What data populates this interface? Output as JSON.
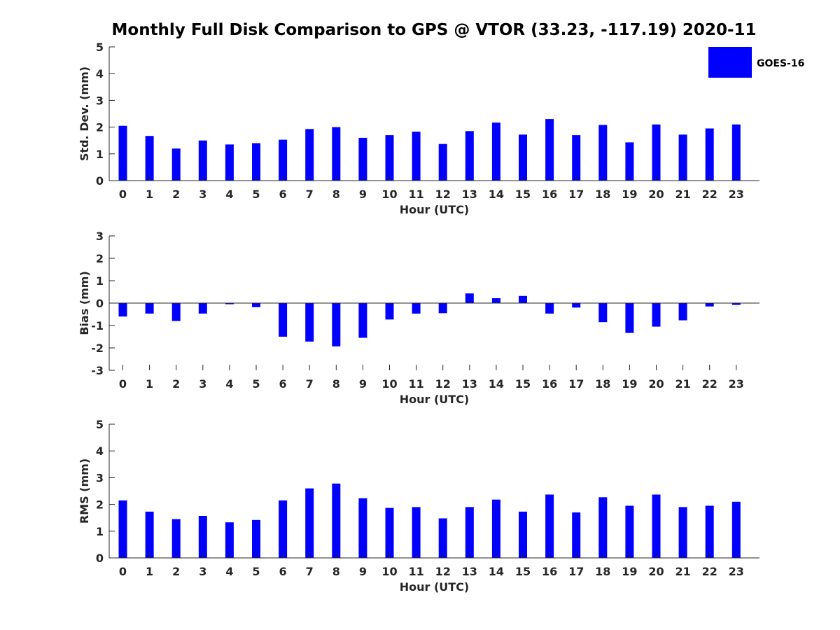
{
  "figure": {
    "title": "Monthly Full Disk Comparison to GPS @ VTOR (33.23, -117.19) 2020-11"
  },
  "legend": {
    "label": "GOES-16",
    "color": "#0000ff",
    "placement": "top-right"
  },
  "chart_data": [
    {
      "type": "bar",
      "name": "stddev",
      "xlabel": "Hour (UTC)",
      "ylabel": "Std. Dev. (mm)",
      "ylim": [
        0,
        5
      ],
      "yticks": [
        0,
        1,
        2,
        3,
        4,
        5
      ],
      "categories": [
        "0",
        "1",
        "2",
        "3",
        "4",
        "5",
        "6",
        "7",
        "8",
        "9",
        "10",
        "11",
        "12",
        "13",
        "14",
        "15",
        "16",
        "17",
        "18",
        "19",
        "20",
        "21",
        "22",
        "23"
      ],
      "series": [
        {
          "name": "GOES-16",
          "color": "#0000ff",
          "values": [
            2.05,
            1.67,
            1.2,
            1.5,
            1.35,
            1.4,
            1.53,
            1.93,
            2.0,
            1.6,
            1.7,
            1.83,
            1.37,
            1.85,
            2.17,
            1.72,
            2.3,
            1.7,
            2.08,
            1.43,
            2.1,
            1.72,
            1.95,
            2.1
          ]
        }
      ]
    },
    {
      "type": "bar",
      "name": "bias",
      "xlabel": "Hour (UTC)",
      "ylabel": "Bias (mm)",
      "ylim": [
        -3,
        3
      ],
      "yticks": [
        -3,
        -2,
        -1,
        0,
        1,
        2,
        3
      ],
      "categories": [
        "0",
        "1",
        "2",
        "3",
        "4",
        "5",
        "6",
        "7",
        "8",
        "9",
        "10",
        "11",
        "12",
        "13",
        "14",
        "15",
        "16",
        "17",
        "18",
        "19",
        "20",
        "21",
        "22",
        "23"
      ],
      "series": [
        {
          "name": "GOES-16",
          "color": "#0000ff",
          "values": [
            -0.6,
            -0.47,
            -0.8,
            -0.47,
            -0.05,
            -0.18,
            -1.5,
            -1.72,
            -1.93,
            -1.55,
            -0.73,
            -0.47,
            -0.45,
            0.43,
            0.22,
            0.32,
            -0.47,
            -0.2,
            -0.85,
            -1.33,
            -1.05,
            -0.77,
            -0.15,
            -0.08
          ]
        }
      ]
    },
    {
      "type": "bar",
      "name": "rms",
      "xlabel": "Hour (UTC)",
      "ylabel": "RMS (mm)",
      "ylim": [
        0,
        5
      ],
      "yticks": [
        0,
        1,
        2,
        3,
        4,
        5
      ],
      "categories": [
        "0",
        "1",
        "2",
        "3",
        "4",
        "5",
        "6",
        "7",
        "8",
        "9",
        "10",
        "11",
        "12",
        "13",
        "14",
        "15",
        "16",
        "17",
        "18",
        "19",
        "20",
        "21",
        "22",
        "23"
      ],
      "series": [
        {
          "name": "GOES-16",
          "color": "#0000ff",
          "values": [
            2.15,
            1.73,
            1.45,
            1.57,
            1.33,
            1.42,
            2.15,
            2.6,
            2.78,
            2.23,
            1.87,
            1.9,
            1.48,
            1.9,
            2.18,
            1.73,
            2.37,
            1.7,
            2.27,
            1.95,
            2.37,
            1.9,
            1.95,
            2.1
          ]
        }
      ]
    }
  ]
}
